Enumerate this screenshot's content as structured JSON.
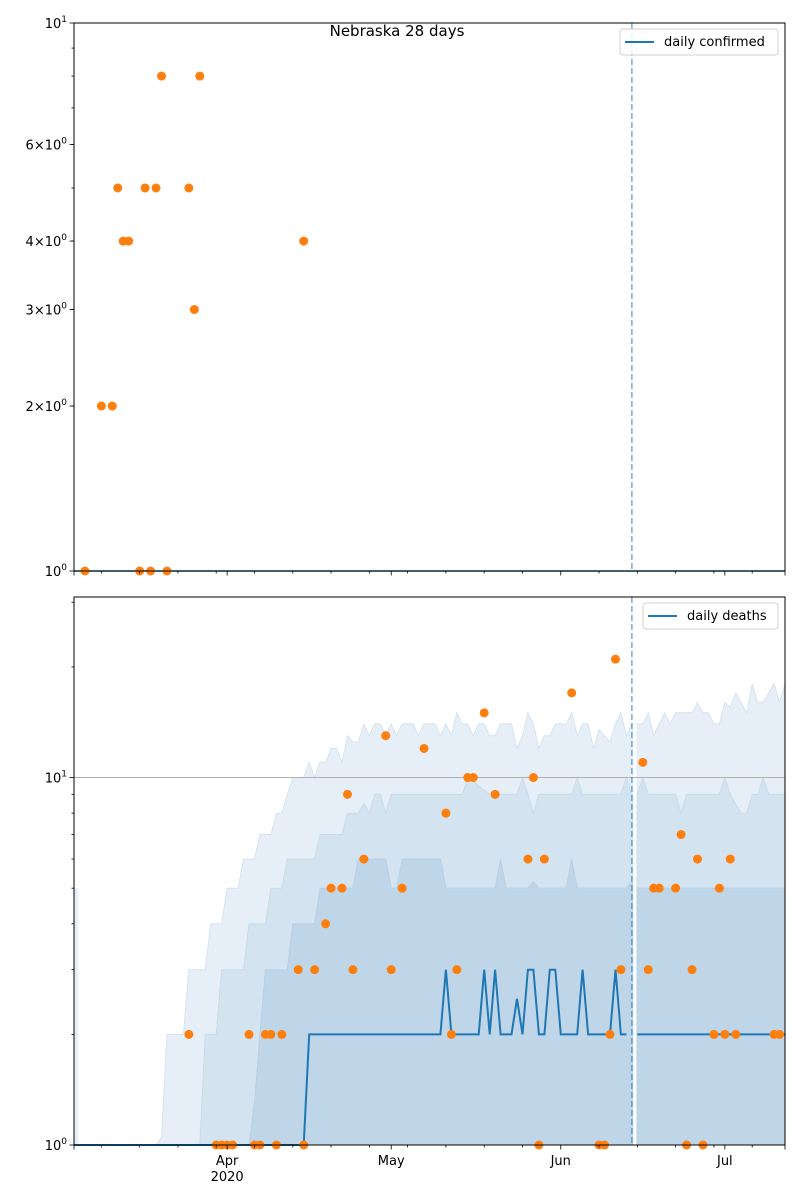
{
  "colors": {
    "line": "#1f77b4",
    "points": "#ff7f0e",
    "band_outer": "#e6eff7",
    "band_mid": "#d3e3f0",
    "band_inner": "#bfd6e9",
    "grid": "#b0b0b0"
  },
  "chart_data": [
    {
      "type": "scatter",
      "title": "Nebraska 28 days",
      "yscale": "log",
      "ylim": [
        1,
        10
      ],
      "xlim_day": [
        3.0,
        133.0
      ],
      "x_reference_date": "2020-03-01",
      "x_unit": "days since 2020-03-01",
      "ytick_labels": [
        {
          "value": 1,
          "base": "10",
          "exp": "0",
          "mant": ""
        },
        {
          "value": 2,
          "base": "10",
          "exp": "0",
          "mant": "2"
        },
        {
          "value": 3,
          "base": "10",
          "exp": "0",
          "mant": "3"
        },
        {
          "value": 4,
          "base": "10",
          "exp": "0",
          "mant": "4"
        },
        {
          "value": 6,
          "base": "10",
          "exp": "0",
          "mant": "6"
        },
        {
          "value": 10,
          "base": "10",
          "exp": "1",
          "mant": ""
        }
      ],
      "legend": {
        "label": "daily confirmed",
        "placement": "top-right"
      },
      "forecast_start_day": 105,
      "series": [
        {
          "name": "daily confirmed",
          "kind": "line",
          "values_constant": 1
        }
      ],
      "points": [
        {
          "day": 5,
          "value": 1
        },
        {
          "day": 8,
          "value": 2
        },
        {
          "day": 10,
          "value": 2
        },
        {
          "day": 11,
          "value": 5
        },
        {
          "day": 12,
          "value": 4
        },
        {
          "day": 13,
          "value": 4
        },
        {
          "day": 15,
          "value": 1
        },
        {
          "day": 16,
          "value": 5
        },
        {
          "day": 17,
          "value": 1
        },
        {
          "day": 18,
          "value": 5
        },
        {
          "day": 19,
          "value": 8
        },
        {
          "day": 20,
          "value": 1
        },
        {
          "day": 24,
          "value": 5
        },
        {
          "day": 25,
          "value": 3
        },
        {
          "day": 26,
          "value": 8
        },
        {
          "day": 45,
          "value": 4
        }
      ]
    },
    {
      "type": "line",
      "title": "",
      "yscale": "log",
      "ylim": [
        1,
        31
      ],
      "xlim_day": [
        3.0,
        133.0
      ],
      "x_reference_date": "2020-03-01",
      "x_unit": "days since 2020-03-01",
      "ytick_labels": [
        {
          "value": 1,
          "base": "10",
          "exp": "0",
          "mant": ""
        },
        {
          "value": 10,
          "base": "10",
          "exp": "1",
          "mant": ""
        }
      ],
      "xtick_labels": [
        {
          "day": 31,
          "label": "Apr",
          "sub": "2020"
        },
        {
          "day": 61,
          "label": "May",
          "sub": ""
        },
        {
          "day": 92,
          "label": "Jun",
          "sub": ""
        },
        {
          "day": 122,
          "label": "Jul",
          "sub": ""
        }
      ],
      "legend": {
        "label": "daily deaths",
        "placement": "top-right"
      },
      "forecast_start_day": 105,
      "grid_y_value": 10,
      "median": [
        [
          3,
          1
        ],
        [
          45,
          1
        ],
        [
          46,
          2
        ],
        [
          70,
          2
        ],
        [
          71,
          3
        ],
        [
          72,
          2
        ],
        [
          77,
          2
        ],
        [
          78,
          3
        ],
        [
          79,
          2
        ],
        [
          80,
          3
        ],
        [
          81,
          2
        ],
        [
          83,
          2
        ],
        [
          84,
          2.5
        ],
        [
          85,
          2
        ],
        [
          86,
          3
        ],
        [
          87,
          3
        ],
        [
          88,
          2
        ],
        [
          89,
          2
        ],
        [
          90,
          3
        ],
        [
          91,
          3
        ],
        [
          92,
          2
        ],
        [
          95,
          2
        ],
        [
          96,
          3
        ],
        [
          97,
          2
        ],
        [
          100,
          2
        ],
        [
          101,
          2
        ],
        [
          102,
          3
        ],
        [
          103,
          2
        ],
        [
          104,
          2
        ],
        [
          106,
          2
        ],
        [
          133,
          2
        ]
      ],
      "band_inner_upper": [
        [
          3,
          1
        ],
        [
          35,
          1
        ],
        [
          36,
          1.3
        ],
        [
          37,
          2
        ],
        [
          38,
          3
        ],
        [
          42,
          3
        ],
        [
          43,
          4
        ],
        [
          47,
          4
        ],
        [
          48,
          5
        ],
        [
          54,
          5
        ],
        [
          55,
          6
        ],
        [
          60,
          6
        ],
        [
          61,
          5
        ],
        [
          62,
          5
        ],
        [
          63,
          6
        ],
        [
          70,
          6
        ],
        [
          71,
          5
        ],
        [
          80,
          5
        ],
        [
          81,
          6
        ],
        [
          82,
          5
        ],
        [
          86,
          5
        ],
        [
          87,
          5.2
        ],
        [
          88,
          5
        ],
        [
          93,
          5
        ],
        [
          94,
          6
        ],
        [
          95,
          5
        ],
        [
          104,
          5
        ],
        [
          105,
          5.2
        ],
        [
          106,
          5
        ],
        [
          133,
          5
        ]
      ],
      "band_mid_upper": [
        [
          3,
          1
        ],
        [
          26,
          1
        ],
        [
          27,
          2
        ],
        [
          29,
          2
        ],
        [
          30,
          3
        ],
        [
          34,
          3
        ],
        [
          35,
          4
        ],
        [
          38,
          4
        ],
        [
          39,
          5
        ],
        [
          41,
          5
        ],
        [
          42,
          6
        ],
        [
          47,
          6
        ],
        [
          48,
          7
        ],
        [
          52,
          7
        ],
        [
          53,
          8
        ],
        [
          55,
          8
        ],
        [
          56,
          8.5
        ],
        [
          57,
          8
        ],
        [
          58,
          9
        ],
        [
          59,
          9
        ],
        [
          60,
          8
        ],
        [
          61,
          9
        ],
        [
          66,
          9
        ],
        [
          67,
          9
        ],
        [
          72,
          9
        ],
        [
          74,
          9
        ],
        [
          75,
          10
        ],
        [
          79,
          9
        ],
        [
          80,
          9
        ],
        [
          84,
          9
        ],
        [
          85,
          10
        ],
        [
          86,
          9
        ],
        [
          87,
          8
        ],
        [
          88,
          9
        ],
        [
          94,
          9
        ],
        [
          95,
          10
        ],
        [
          96,
          9
        ],
        [
          102,
          9
        ],
        [
          103,
          9
        ],
        [
          104,
          10
        ],
        [
          105,
          9
        ],
        [
          106,
          9
        ],
        [
          107,
          10
        ],
        [
          108,
          9
        ],
        [
          113,
          9
        ],
        [
          114,
          8
        ],
        [
          115,
          9
        ],
        [
          121,
          9
        ],
        [
          122,
          10
        ],
        [
          123,
          9
        ],
        [
          125,
          8
        ],
        [
          126,
          8
        ],
        [
          127,
          9
        ],
        [
          128,
          9
        ],
        [
          129,
          10
        ],
        [
          130,
          9
        ],
        [
          133,
          9
        ]
      ],
      "band_outer_upper": [
        [
          3,
          1
        ],
        [
          18,
          1
        ],
        [
          19,
          1.05
        ],
        [
          20,
          2
        ],
        [
          23,
          2
        ],
        [
          24,
          3
        ],
        [
          27,
          3
        ],
        [
          28,
          4
        ],
        [
          30,
          4
        ],
        [
          31,
          5
        ],
        [
          33,
          5
        ],
        [
          34,
          6
        ],
        [
          36,
          6
        ],
        [
          37,
          7
        ],
        [
          39,
          7
        ],
        [
          40,
          8
        ],
        [
          41,
          8
        ],
        [
          42,
          9
        ],
        [
          43,
          10
        ],
        [
          45,
          10
        ],
        [
          46,
          11
        ],
        [
          47,
          10
        ],
        [
          48,
          11
        ],
        [
          49,
          11
        ],
        [
          50,
          12
        ],
        [
          51,
          12
        ],
        [
          52,
          11
        ],
        [
          53,
          13
        ],
        [
          54,
          12.5
        ],
        [
          55,
          12.5
        ],
        [
          56,
          14
        ],
        [
          57,
          13
        ],
        [
          58,
          14
        ],
        [
          59,
          14
        ],
        [
          60,
          13
        ],
        [
          61,
          14
        ],
        [
          62,
          13
        ],
        [
          63,
          14
        ],
        [
          64,
          14
        ],
        [
          65,
          14
        ],
        [
          66,
          13
        ],
        [
          67,
          14
        ],
        [
          68,
          14
        ],
        [
          69,
          14
        ],
        [
          70,
          13
        ],
        [
          71,
          14
        ],
        [
          72,
          13
        ],
        [
          73,
          15
        ],
        [
          74,
          14
        ],
        [
          75,
          14
        ],
        [
          76,
          13
        ],
        [
          77,
          14
        ],
        [
          78,
          14
        ],
        [
          79,
          13
        ],
        [
          80,
          13
        ],
        [
          81,
          14
        ],
        [
          82,
          14
        ],
        [
          83,
          14
        ],
        [
          84,
          12
        ],
        [
          85,
          13
        ],
        [
          86,
          15
        ],
        [
          87,
          14
        ],
        [
          88,
          12
        ],
        [
          89,
          13
        ],
        [
          90,
          13
        ],
        [
          91,
          14
        ],
        [
          92,
          14
        ],
        [
          93,
          14
        ],
        [
          94,
          15
        ],
        [
          95,
          13
        ],
        [
          96,
          14
        ],
        [
          97,
          14
        ],
        [
          98,
          12
        ],
        [
          99,
          13.5
        ],
        [
          100,
          13
        ],
        [
          101,
          12.5
        ],
        [
          102,
          14
        ],
        [
          103,
          15
        ],
        [
          104,
          13
        ],
        [
          105,
          14
        ],
        [
          106,
          14
        ],
        [
          107,
          14
        ],
        [
          108,
          15
        ],
        [
          109,
          13
        ],
        [
          110,
          14
        ],
        [
          111,
          15
        ],
        [
          112,
          14
        ],
        [
          113,
          15
        ],
        [
          114,
          15
        ],
        [
          115,
          15
        ],
        [
          116,
          15
        ],
        [
          117,
          16
        ],
        [
          118,
          15
        ],
        [
          119,
          15
        ],
        [
          120,
          14
        ],
        [
          121,
          14
        ],
        [
          122,
          16
        ],
        [
          123,
          15.5
        ],
        [
          124,
          17
        ],
        [
          125,
          16
        ],
        [
          126,
          15
        ],
        [
          127,
          18
        ],
        [
          128,
          16
        ],
        [
          129,
          16
        ],
        [
          130,
          17
        ],
        [
          131,
          18
        ],
        [
          132,
          16
        ],
        [
          133,
          18
        ]
      ],
      "points": [
        {
          "day": 24,
          "value": 2
        },
        {
          "day": 29,
          "value": 1
        },
        {
          "day": 30,
          "value": 1
        },
        {
          "day": 31,
          "value": 1
        },
        {
          "day": 32,
          "value": 1
        },
        {
          "day": 35,
          "value": 2
        },
        {
          "day": 36,
          "value": 1
        },
        {
          "day": 37,
          "value": 1
        },
        {
          "day": 38,
          "value": 2
        },
        {
          "day": 39,
          "value": 2
        },
        {
          "day": 40,
          "value": 1
        },
        {
          "day": 41,
          "value": 2
        },
        {
          "day": 44,
          "value": 3
        },
        {
          "day": 45,
          "value": 1
        },
        {
          "day": 47,
          "value": 3
        },
        {
          "day": 49,
          "value": 4
        },
        {
          "day": 50,
          "value": 5
        },
        {
          "day": 52,
          "value": 5
        },
        {
          "day": 53,
          "value": 9
        },
        {
          "day": 54,
          "value": 3
        },
        {
          "day": 56,
          "value": 6
        },
        {
          "day": 60,
          "value": 13
        },
        {
          "day": 61,
          "value": 3
        },
        {
          "day": 63,
          "value": 5
        },
        {
          "day": 67,
          "value": 12
        },
        {
          "day": 71,
          "value": 8
        },
        {
          "day": 72,
          "value": 2
        },
        {
          "day": 73,
          "value": 3
        },
        {
          "day": 75,
          "value": 10
        },
        {
          "day": 76,
          "value": 10
        },
        {
          "day": 78,
          "value": 15
        },
        {
          "day": 80,
          "value": 9
        },
        {
          "day": 86,
          "value": 6
        },
        {
          "day": 87,
          "value": 10
        },
        {
          "day": 88,
          "value": 1
        },
        {
          "day": 89,
          "value": 6
        },
        {
          "day": 94,
          "value": 17
        },
        {
          "day": 99,
          "value": 1
        },
        {
          "day": 100,
          "value": 1
        },
        {
          "day": 101,
          "value": 2
        },
        {
          "day": 102,
          "value": 21
        },
        {
          "day": 103,
          "value": 3
        },
        {
          "day": 107,
          "value": 11
        },
        {
          "day": 108,
          "value": 3
        },
        {
          "day": 109,
          "value": 5
        },
        {
          "day": 110,
          "value": 5
        },
        {
          "day": 113,
          "value": 5
        },
        {
          "day": 114,
          "value": 7
        },
        {
          "day": 115,
          "value": 1
        },
        {
          "day": 116,
          "value": 3
        },
        {
          "day": 117,
          "value": 6
        },
        {
          "day": 118,
          "value": 1
        },
        {
          "day": 120,
          "value": 2
        },
        {
          "day": 121,
          "value": 5
        },
        {
          "day": 122,
          "value": 2
        },
        {
          "day": 123,
          "value": 6
        },
        {
          "day": 124,
          "value": 2
        },
        {
          "day": 131,
          "value": 2
        },
        {
          "day": 132,
          "value": 2
        }
      ]
    }
  ]
}
